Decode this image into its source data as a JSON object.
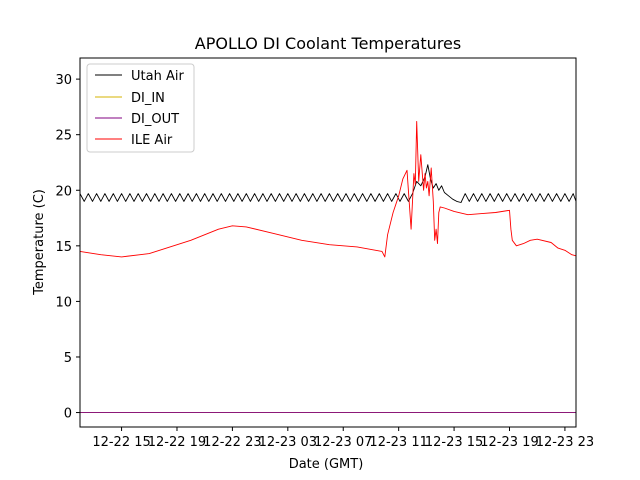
{
  "chart_data": {
    "type": "line",
    "title": "APOLLO DI Coolant Temperatures",
    "xlabel": "Date (GMT)",
    "ylabel": "Temperature (C)",
    "x_unit": "hours since 12-22 12:00 GMT",
    "xlim": [
      0,
      35.8
    ],
    "ylim": [
      -1.3,
      31.9
    ],
    "grid": false,
    "legend_position": "top-left",
    "x_ticks": [
      {
        "value": 3,
        "label": "12-22 15"
      },
      {
        "value": 7,
        "label": "12-22 19"
      },
      {
        "value": 11,
        "label": "12-22 23"
      },
      {
        "value": 15,
        "label": "12-23 03"
      },
      {
        "value": 19,
        "label": "12-23 07"
      },
      {
        "value": 23,
        "label": "12-23 11"
      },
      {
        "value": 27,
        "label": "12-23 15"
      },
      {
        "value": 31,
        "label": "12-23 19"
      },
      {
        "value": 35,
        "label": "12-23 23"
      }
    ],
    "y_ticks": [
      {
        "value": 0,
        "label": "0"
      },
      {
        "value": 5,
        "label": "5"
      },
      {
        "value": 10,
        "label": "10"
      },
      {
        "value": 15,
        "label": "15"
      },
      {
        "value": 20,
        "label": "20"
      },
      {
        "value": 25,
        "label": "25"
      },
      {
        "value": 30,
        "label": "30"
      }
    ],
    "series": [
      {
        "name": "Utah Air",
        "color": "#000000",
        "x": [
          0,
          0.3,
          0.6,
          0.9,
          1.2,
          1.5,
          1.8,
          2.1,
          2.4,
          2.7,
          3.0,
          3.3,
          3.6,
          3.9,
          4.2,
          4.5,
          4.8,
          5.1,
          5.4,
          5.7,
          6.0,
          6.3,
          6.6,
          6.9,
          7.2,
          7.5,
          7.8,
          8.1,
          8.4,
          8.7,
          9.0,
          9.3,
          9.6,
          9.9,
          10.2,
          10.5,
          10.8,
          11.1,
          11.4,
          11.7,
          12.0,
          12.3,
          12.6,
          12.9,
          13.2,
          13.5,
          13.8,
          14.1,
          14.4,
          14.7,
          15.0,
          15.3,
          15.6,
          15.9,
          16.2,
          16.5,
          16.8,
          17.1,
          17.4,
          17.7,
          18.0,
          18.3,
          18.6,
          18.9,
          19.2,
          19.5,
          19.8,
          20.1,
          20.4,
          20.7,
          21.0,
          21.3,
          21.6,
          21.9,
          22.2,
          22.5,
          22.8,
          23.1,
          23.4,
          23.7,
          24.0,
          24.3,
          24.6,
          24.9,
          25.1,
          25.3,
          25.5,
          25.7,
          25.9,
          26.1,
          26.3,
          26.6,
          26.9,
          27.2,
          27.5,
          27.8,
          28.1,
          28.4,
          28.7,
          29.0,
          29.3,
          29.6,
          29.9,
          30.2,
          30.5,
          30.8,
          31.1,
          31.4,
          31.7,
          32.0,
          32.3,
          32.6,
          32.9,
          33.2,
          33.5,
          33.8,
          34.1,
          34.4,
          34.7,
          35.0,
          35.3,
          35.6,
          35.8
        ],
        "values": [
          19.7,
          19.0,
          19.7,
          19.0,
          19.7,
          19.0,
          19.7,
          19.0,
          19.7,
          19.0,
          19.7,
          19.0,
          19.7,
          19.0,
          19.7,
          19.0,
          19.7,
          19.0,
          19.7,
          19.0,
          19.7,
          19.0,
          19.7,
          19.0,
          19.7,
          19.0,
          19.7,
          19.0,
          19.7,
          19.0,
          19.7,
          19.0,
          19.7,
          19.0,
          19.7,
          19.0,
          19.7,
          19.0,
          19.7,
          19.0,
          19.7,
          19.0,
          19.7,
          19.0,
          19.7,
          19.0,
          19.7,
          19.0,
          19.7,
          19.0,
          19.7,
          19.0,
          19.7,
          19.0,
          19.7,
          19.0,
          19.7,
          19.0,
          19.7,
          19.0,
          19.7,
          19.0,
          19.7,
          19.0,
          19.7,
          19.0,
          19.7,
          19.0,
          19.7,
          19.0,
          19.7,
          19.0,
          19.7,
          19.0,
          19.7,
          19.0,
          19.7,
          19.0,
          19.7,
          19.0,
          19.7,
          20.8,
          20.4,
          21.2,
          22.3,
          21.0,
          20.2,
          20.6,
          20.0,
          20.4,
          19.8,
          19.5,
          19.2,
          19.0,
          18.9,
          19.7,
          19.0,
          19.7,
          19.0,
          19.7,
          19.0,
          19.7,
          19.0,
          19.7,
          19.0,
          19.7,
          19.0,
          19.7,
          19.0,
          19.7,
          19.0,
          19.7,
          19.0,
          19.7,
          19.0,
          19.7,
          19.0,
          19.7,
          19.0,
          19.7,
          19.0,
          19.7,
          19.0
        ]
      },
      {
        "name": "DI_IN",
        "color": "#d4b300",
        "x": [
          0,
          35.8
        ],
        "values": [
          0,
          0
        ]
      },
      {
        "name": "DI_OUT",
        "color": "#800080",
        "x": [
          0,
          35.8
        ],
        "values": [
          0,
          0
        ]
      },
      {
        "name": "ILE Air",
        "color": "#ff0000",
        "x": [
          0,
          1.5,
          3.0,
          5.0,
          8.0,
          10.0,
          11.0,
          12.0,
          14.0,
          16.0,
          18.0,
          20.0,
          21.8,
          22.0,
          22.2,
          22.6,
          23.0,
          23.3,
          23.6,
          23.9,
          24.1,
          24.2,
          24.3,
          24.45,
          24.6,
          24.8,
          24.9,
          25.0,
          25.1,
          25.2,
          25.35,
          25.5,
          25.6,
          25.7,
          25.8,
          25.9,
          26.0,
          26.3,
          27.0,
          28.0,
          29.0,
          30.0,
          31.0,
          31.1,
          31.2,
          31.5,
          32.0,
          32.5,
          33.0,
          34.0,
          34.5,
          35.0,
          35.5,
          35.8
        ],
        "values": [
          14.5,
          14.2,
          14.0,
          14.3,
          15.5,
          16.5,
          16.8,
          16.7,
          16.1,
          15.5,
          15.1,
          14.9,
          14.5,
          14.0,
          16.0,
          18.0,
          19.5,
          21.0,
          21.8,
          16.5,
          21.5,
          20.5,
          26.2,
          20.8,
          23.2,
          20.0,
          21.5,
          20.2,
          20.8,
          19.5,
          22.0,
          19.0,
          15.5,
          16.5,
          15.2,
          18.0,
          18.5,
          18.4,
          18.1,
          17.8,
          17.9,
          18.0,
          18.2,
          16.5,
          15.5,
          15.0,
          15.2,
          15.5,
          15.6,
          15.3,
          14.8,
          14.6,
          14.2,
          14.1
        ]
      }
    ]
  }
}
